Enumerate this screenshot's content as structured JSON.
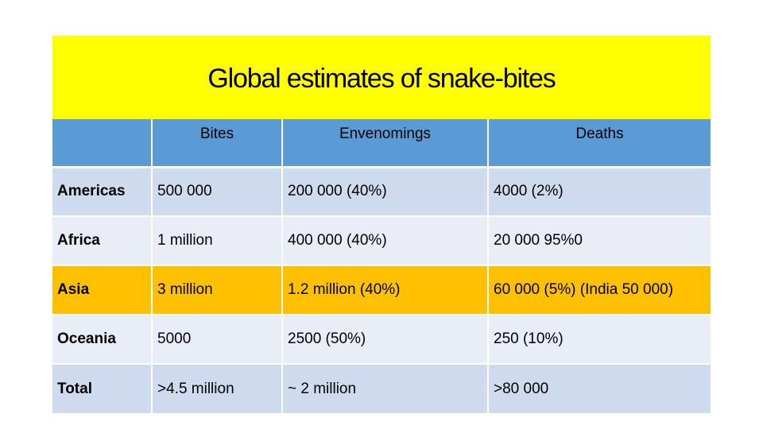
{
  "title": "Global estimates of snake-bites",
  "table": {
    "headers": [
      "",
      "Bites",
      "Envenomings",
      "Deaths"
    ],
    "rows": [
      {
        "region": "Americas",
        "bites": "500 000",
        "envenomings": "200 000 (40%)",
        "deaths": "4000 (2%)"
      },
      {
        "region": "Africa",
        "bites": "1 million",
        "envenomings": "400 000 (40%)",
        "deaths": "20 000 95%0"
      },
      {
        "region": "Asia",
        "bites": "3 million",
        "envenomings": "1.2 million (40%)",
        "deaths": "60 000 (5%) (India 50 000)"
      },
      {
        "region": "Oceania",
        "bites": "5000",
        "envenomings": "2500 (50%)",
        "deaths": "250 (10%)"
      },
      {
        "region": "Total",
        "bites": ">4.5 million",
        "envenomings": "~ 2 million",
        "deaths": ">80 000"
      }
    ]
  },
  "colors": {
    "title_band": "#ffff00",
    "header": "#5b9bd5",
    "row_dark": "#cfdbee",
    "row_light": "#e8edf6",
    "highlight": "#ffc000"
  }
}
